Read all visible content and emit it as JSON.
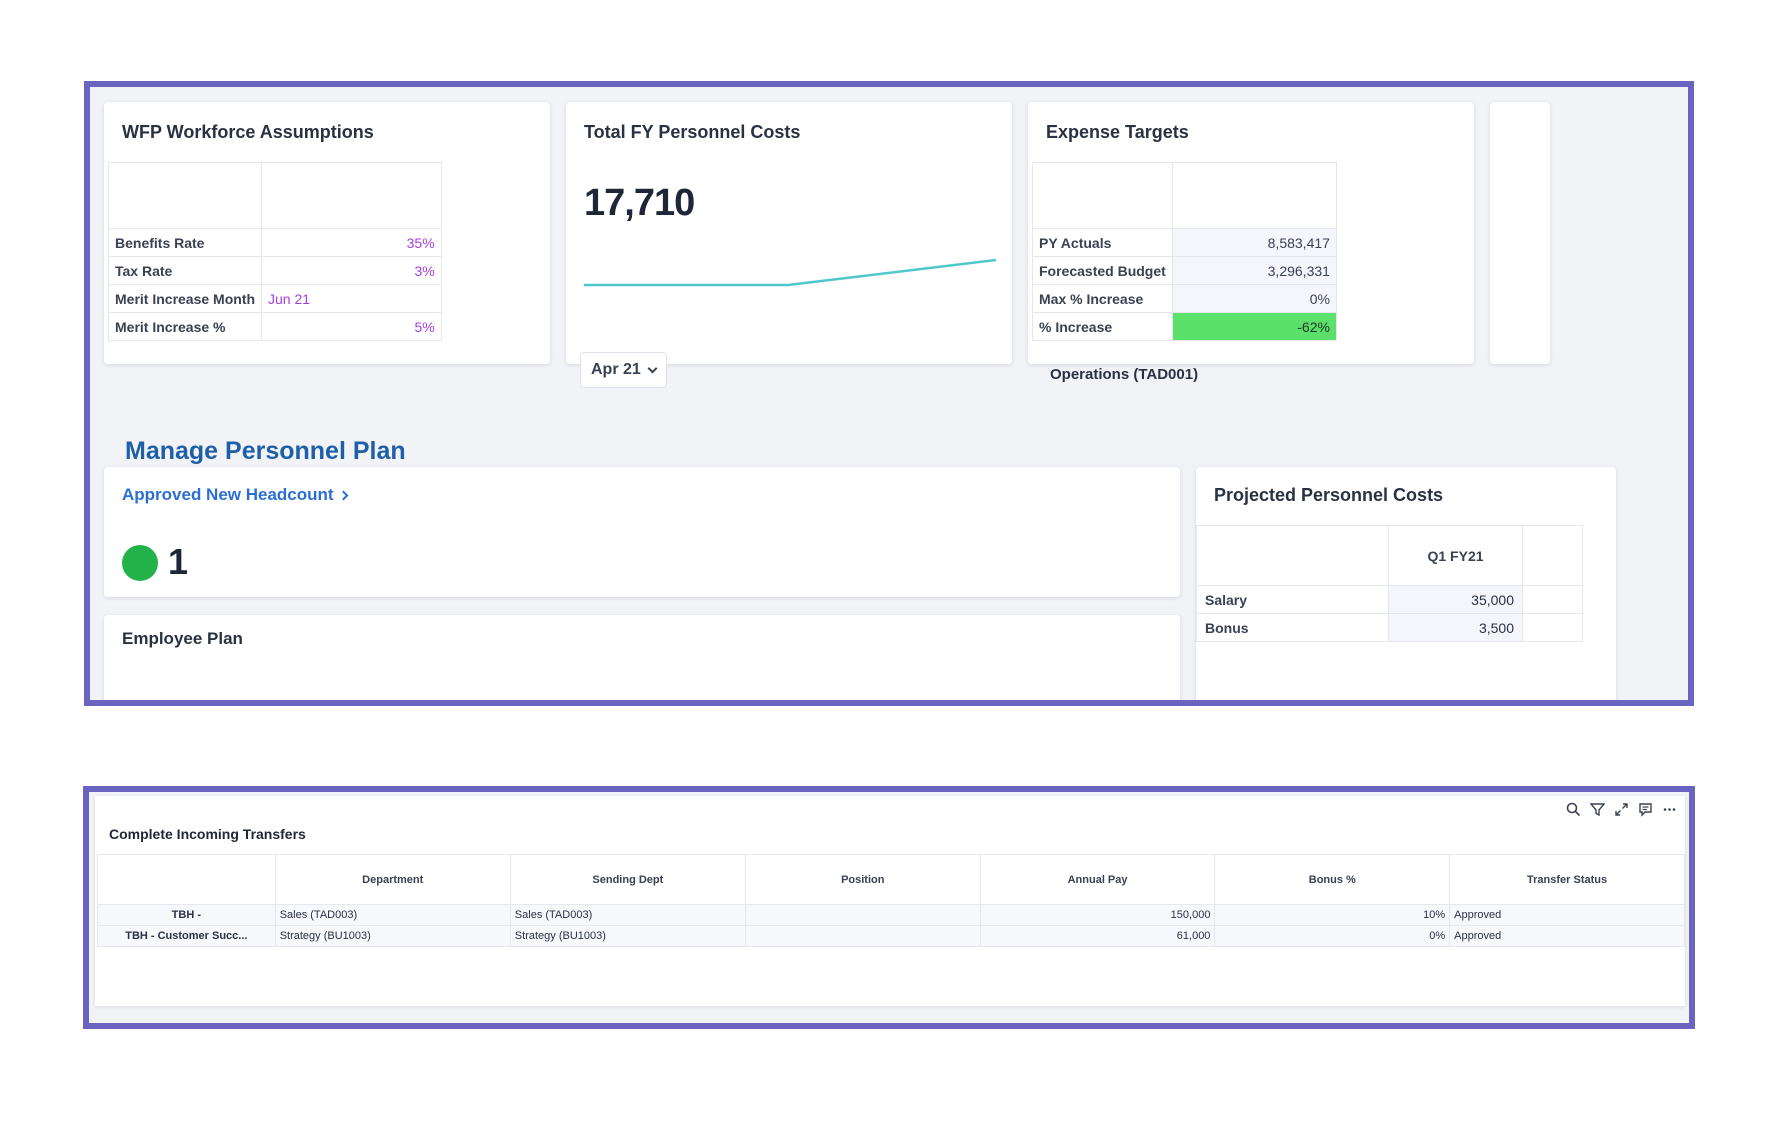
{
  "workforce_assumptions": {
    "title": "WFP Workforce Assumptions",
    "rows": [
      {
        "label": "Benefits Rate",
        "value": "35%"
      },
      {
        "label": "Tax Rate",
        "value": "3%"
      },
      {
        "label": "Merit Increase Month",
        "value": "Jun 21"
      },
      {
        "label": "Merit Increase %",
        "value": "5%"
      }
    ]
  },
  "personnel_costs": {
    "title": "Total FY Personnel Costs",
    "value": "17,710",
    "period": "Apr 21",
    "trend_color": "#4fc8cc"
  },
  "expense_targets": {
    "title": "Expense Targets",
    "rows": [
      {
        "label": "PY Actuals",
        "value": "8,583,417"
      },
      {
        "label": "Forecasted Budget",
        "value": "3,296,331"
      },
      {
        "label": "Max % Increase",
        "value": "0%"
      },
      {
        "label": "% Increase",
        "value": "-62%"
      }
    ],
    "caption": "Operations (TAD001)"
  },
  "manage_section": {
    "title": "Manage Personnel Plan"
  },
  "approved_headcount": {
    "label": "Approved New Headcount",
    "count": "1",
    "status_color": "#23b14a"
  },
  "employee_plan": {
    "title": "Employee Plan"
  },
  "projected_costs": {
    "title": "Projected Personnel Costs",
    "column": "Q1 FY21",
    "rows": [
      {
        "label": "Salary",
        "value": "35,000"
      },
      {
        "label": "Bonus",
        "value": "3,500"
      }
    ]
  },
  "transfers": {
    "title": "Complete Incoming Transfers",
    "toolbar_icons": [
      "search-icon",
      "filter-icon",
      "expand-icon",
      "comment-icon",
      "more-icon"
    ],
    "columns": [
      "",
      "Department",
      "Sending Dept",
      "Position",
      "Annual Pay",
      "Bonus %",
      "Transfer Status"
    ],
    "rows": [
      [
        "TBH -",
        "Sales (TAD003)",
        "Sales (TAD003)",
        "",
        "150,000",
        "10%",
        "Approved"
      ],
      [
        "TBH - Customer Succ...",
        "Strategy (BU1003)",
        "Strategy (BU1003)",
        "",
        "61,000",
        "0%",
        "Approved"
      ]
    ]
  },
  "colors": {
    "frame": "#6a63bf",
    "accent_blue": "#1f5fa8",
    "highlight_green": "#5ce06c",
    "value_purple": "#a43fe0"
  }
}
